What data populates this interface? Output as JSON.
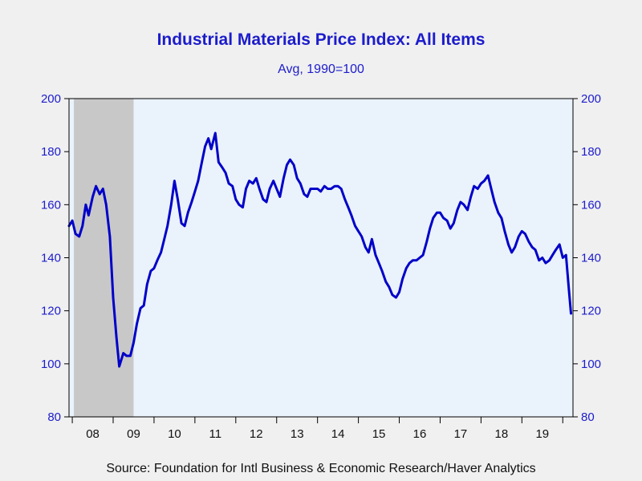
{
  "chart_data": {
    "type": "line",
    "title": "Industrial Materials Price Index: All Items",
    "subtitle": "Avg, 1990=100",
    "source": "Source:  Foundation for Intl Business & Economic Research/Haver Analytics",
    "ylim": [
      80,
      200
    ],
    "yticks": [
      80,
      100,
      120,
      140,
      160,
      180,
      200
    ],
    "xlim": [
      2007.92,
      2020.25
    ],
    "xticks": [
      {
        "label": "08",
        "year": 2008
      },
      {
        "label": "09",
        "year": 2009
      },
      {
        "label": "10",
        "year": 2010
      },
      {
        "label": "11",
        "year": 2011
      },
      {
        "label": "12",
        "year": 2012
      },
      {
        "label": "13",
        "year": 2013
      },
      {
        "label": "14",
        "year": 2014
      },
      {
        "label": "15",
        "year": 2015
      },
      {
        "label": "16",
        "year": 2016
      },
      {
        "label": "17",
        "year": 2017
      },
      {
        "label": "18",
        "year": 2018
      },
      {
        "label": "19",
        "year": 2019
      }
    ],
    "recession": {
      "start": 2008.04,
      "end": 2009.5,
      "color": "#c8c8c8"
    },
    "grid": false,
    "colors": {
      "line": "#0000c8",
      "plot_bg": "#eaf2fc",
      "text": "#1c1ccc"
    },
    "series": [
      {
        "name": "",
        "points": [
          [
            2007.92,
            152
          ],
          [
            2008.0,
            154
          ],
          [
            2008.08,
            149
          ],
          [
            2008.17,
            148
          ],
          [
            2008.25,
            152
          ],
          [
            2008.33,
            160
          ],
          [
            2008.4,
            156
          ],
          [
            2008.5,
            163
          ],
          [
            2008.58,
            167
          ],
          [
            2008.67,
            164
          ],
          [
            2008.75,
            166
          ],
          [
            2008.83,
            160
          ],
          [
            2008.92,
            148
          ],
          [
            2009.0,
            125
          ],
          [
            2009.08,
            110
          ],
          [
            2009.15,
            99
          ],
          [
            2009.25,
            104
          ],
          [
            2009.33,
            103
          ],
          [
            2009.42,
            103
          ],
          [
            2009.5,
            108
          ],
          [
            2009.58,
            115
          ],
          [
            2009.67,
            121
          ],
          [
            2009.75,
            122
          ],
          [
            2009.83,
            130
          ],
          [
            2009.92,
            135
          ],
          [
            2010.0,
            136
          ],
          [
            2010.08,
            139
          ],
          [
            2010.17,
            142
          ],
          [
            2010.25,
            147
          ],
          [
            2010.33,
            152
          ],
          [
            2010.42,
            160
          ],
          [
            2010.5,
            169
          ],
          [
            2010.58,
            162
          ],
          [
            2010.67,
            153
          ],
          [
            2010.75,
            152
          ],
          [
            2010.83,
            157
          ],
          [
            2010.92,
            161
          ],
          [
            2011.0,
            165
          ],
          [
            2011.08,
            169
          ],
          [
            2011.17,
            176
          ],
          [
            2011.25,
            182
          ],
          [
            2011.33,
            185
          ],
          [
            2011.4,
            181
          ],
          [
            2011.5,
            187
          ],
          [
            2011.58,
            176
          ],
          [
            2011.67,
            174
          ],
          [
            2011.75,
            172
          ],
          [
            2011.83,
            168
          ],
          [
            2011.92,
            167
          ],
          [
            2012.0,
            162
          ],
          [
            2012.08,
            160
          ],
          [
            2012.17,
            159
          ],
          [
            2012.25,
            166
          ],
          [
            2012.33,
            169
          ],
          [
            2012.42,
            168
          ],
          [
            2012.5,
            170
          ],
          [
            2012.58,
            166
          ],
          [
            2012.67,
            162
          ],
          [
            2012.75,
            161
          ],
          [
            2012.83,
            166
          ],
          [
            2012.92,
            169
          ],
          [
            2013.0,
            166
          ],
          [
            2013.08,
            163
          ],
          [
            2013.17,
            170
          ],
          [
            2013.25,
            175
          ],
          [
            2013.33,
            177
          ],
          [
            2013.42,
            175
          ],
          [
            2013.5,
            170
          ],
          [
            2013.58,
            168
          ],
          [
            2013.67,
            164
          ],
          [
            2013.75,
            163
          ],
          [
            2013.83,
            166
          ],
          [
            2013.92,
            166
          ],
          [
            2014.0,
            166
          ],
          [
            2014.08,
            165
          ],
          [
            2014.17,
            167
          ],
          [
            2014.25,
            166
          ],
          [
            2014.33,
            166
          ],
          [
            2014.42,
            167
          ],
          [
            2014.5,
            167
          ],
          [
            2014.58,
            166
          ],
          [
            2014.67,
            162
          ],
          [
            2014.75,
            159
          ],
          [
            2014.83,
            156
          ],
          [
            2014.92,
            152
          ],
          [
            2015.0,
            150
          ],
          [
            2015.08,
            148
          ],
          [
            2015.17,
            144
          ],
          [
            2015.25,
            142
          ],
          [
            2015.33,
            147
          ],
          [
            2015.42,
            141
          ],
          [
            2015.5,
            138
          ],
          [
            2015.58,
            135
          ],
          [
            2015.67,
            131
          ],
          [
            2015.75,
            129
          ],
          [
            2015.83,
            126
          ],
          [
            2015.92,
            125
          ],
          [
            2016.0,
            127
          ],
          [
            2016.08,
            132
          ],
          [
            2016.17,
            136
          ],
          [
            2016.25,
            138
          ],
          [
            2016.33,
            139
          ],
          [
            2016.42,
            139
          ],
          [
            2016.5,
            140
          ],
          [
            2016.58,
            141
          ],
          [
            2016.67,
            146
          ],
          [
            2016.75,
            151
          ],
          [
            2016.83,
            155
          ],
          [
            2016.92,
            157
          ],
          [
            2017.0,
            157
          ],
          [
            2017.08,
            155
          ],
          [
            2017.17,
            154
          ],
          [
            2017.25,
            151
          ],
          [
            2017.33,
            153
          ],
          [
            2017.42,
            158
          ],
          [
            2017.5,
            161
          ],
          [
            2017.58,
            160
          ],
          [
            2017.67,
            158
          ],
          [
            2017.75,
            163
          ],
          [
            2017.83,
            167
          ],
          [
            2017.92,
            166
          ],
          [
            2018.0,
            168
          ],
          [
            2018.08,
            169
          ],
          [
            2018.17,
            171
          ],
          [
            2018.25,
            166
          ],
          [
            2018.33,
            161
          ],
          [
            2018.42,
            157
          ],
          [
            2018.5,
            155
          ],
          [
            2018.58,
            150
          ],
          [
            2018.67,
            145
          ],
          [
            2018.75,
            142
          ],
          [
            2018.83,
            144
          ],
          [
            2018.92,
            148
          ],
          [
            2019.0,
            150
          ],
          [
            2019.08,
            149
          ],
          [
            2019.17,
            146
          ],
          [
            2019.25,
            144
          ],
          [
            2019.33,
            143
          ],
          [
            2019.42,
            139
          ],
          [
            2019.5,
            140
          ],
          [
            2019.58,
            138
          ],
          [
            2019.67,
            139
          ],
          [
            2019.75,
            141
          ],
          [
            2019.83,
            143
          ],
          [
            2019.92,
            145
          ],
          [
            2020.0,
            140
          ],
          [
            2020.08,
            141
          ],
          [
            2020.15,
            128
          ],
          [
            2020.2,
            119
          ]
        ]
      }
    ]
  }
}
